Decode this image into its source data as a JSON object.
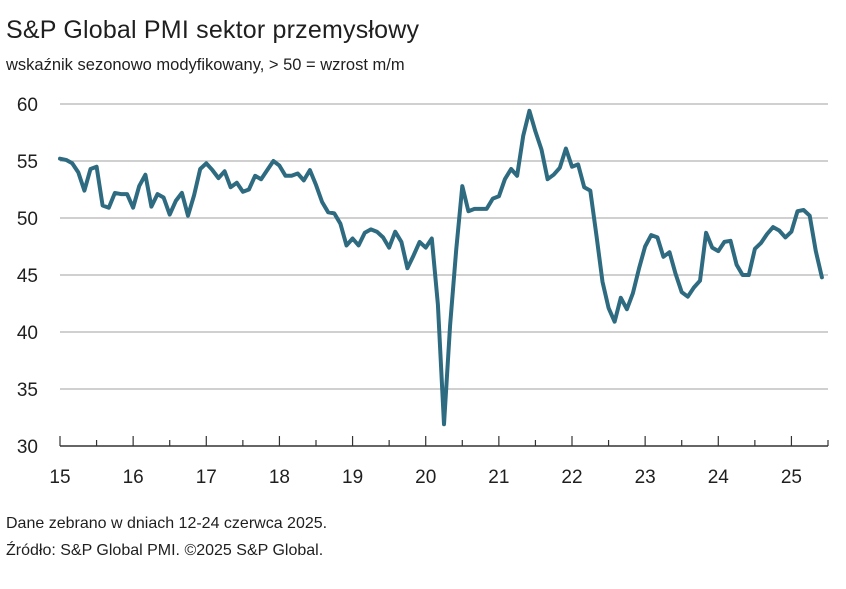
{
  "title": "S&P Global PMI sektor przemysłowy",
  "subtitle": "wskaźnik sezonowo modyfikowany, > 50 = wzrost m/m",
  "footnotes": {
    "collected": "Dane zebrano w dniach 12-24 czerwca 2025.",
    "source": "Źródło: S&P Global PMI. ©2025 S&P Global."
  },
  "chart_data": {
    "type": "line",
    "title": "S&P Global PMI sektor przemysłowy",
    "subtitle": "wskaźnik sezonowo modyfikowany, > 50 = wzrost m/m",
    "xlabel": "",
    "ylabel": "",
    "ylim": [
      30,
      60
    ],
    "xlim": [
      2015.0,
      2025.5
    ],
    "grid": "horizontal",
    "legend": "none",
    "line_color": "#2e6b80",
    "y_ticks": [
      "60",
      "55",
      "50",
      "45",
      "40",
      "35",
      "30"
    ],
    "x_ticks": [
      "15",
      "16",
      "17",
      "18",
      "19",
      "20",
      "21",
      "22",
      "23",
      "24",
      "25"
    ],
    "series": [
      {
        "name": "",
        "x": [
          2015.0,
          2015.083,
          2015.167,
          2015.25,
          2015.333,
          2015.417,
          2015.5,
          2015.583,
          2015.667,
          2015.75,
          2015.833,
          2015.917,
          2016.0,
          2016.083,
          2016.167,
          2016.25,
          2016.333,
          2016.417,
          2016.5,
          2016.583,
          2016.667,
          2016.75,
          2016.833,
          2016.917,
          2017.0,
          2017.083,
          2017.167,
          2017.25,
          2017.333,
          2017.417,
          2017.5,
          2017.583,
          2017.667,
          2017.75,
          2017.833,
          2017.917,
          2018.0,
          2018.083,
          2018.167,
          2018.25,
          2018.333,
          2018.417,
          2018.5,
          2018.583,
          2018.667,
          2018.75,
          2018.833,
          2018.917,
          2019.0,
          2019.083,
          2019.167,
          2019.25,
          2019.333,
          2019.417,
          2019.5,
          2019.583,
          2019.667,
          2019.75,
          2019.833,
          2019.917,
          2020.0,
          2020.083,
          2020.167,
          2020.25,
          2020.333,
          2020.417,
          2020.5,
          2020.583,
          2020.667,
          2020.75,
          2020.833,
          2020.917,
          2021.0,
          2021.083,
          2021.167,
          2021.25,
          2021.333,
          2021.417,
          2021.5,
          2021.583,
          2021.667,
          2021.75,
          2021.833,
          2021.917,
          2022.0,
          2022.083,
          2022.167,
          2022.25,
          2022.333,
          2022.417,
          2022.5,
          2022.583,
          2022.667,
          2022.75,
          2022.833,
          2022.917,
          2023.0,
          2023.083,
          2023.167,
          2023.25,
          2023.333,
          2023.417,
          2023.5,
          2023.583,
          2023.667,
          2023.75,
          2023.833,
          2023.917,
          2024.0,
          2024.083,
          2024.167,
          2024.25,
          2024.333,
          2024.417,
          2024.5,
          2024.583,
          2024.667,
          2024.75,
          2024.833,
          2024.917,
          2025.0,
          2025.083,
          2025.167,
          2025.25,
          2025.333,
          2025.417
        ],
        "y": [
          55.2,
          55.1,
          54.8,
          54.0,
          52.4,
          54.3,
          54.5,
          51.1,
          50.9,
          52.2,
          52.1,
          52.1,
          50.9,
          52.8,
          53.8,
          51.0,
          52.1,
          51.8,
          50.3,
          51.5,
          52.2,
          50.2,
          52.0,
          54.3,
          54.8,
          54.2,
          53.5,
          54.1,
          52.7,
          53.1,
          52.3,
          52.5,
          53.7,
          53.4,
          54.2,
          55.0,
          54.6,
          53.7,
          53.7,
          53.9,
          53.3,
          54.2,
          52.9,
          51.4,
          50.5,
          50.4,
          49.5,
          47.6,
          48.2,
          47.6,
          48.7,
          49.0,
          48.8,
          48.3,
          47.4,
          48.8,
          47.9,
          45.6,
          46.7,
          47.9,
          47.4,
          48.2,
          42.4,
          31.9,
          40.6,
          47.2,
          52.8,
          50.6,
          50.8,
          50.8,
          50.8,
          51.7,
          51.9,
          53.4,
          54.3,
          53.7,
          57.2,
          59.4,
          57.6,
          56.0,
          53.4,
          53.8,
          54.4,
          56.1,
          54.5,
          54.7,
          52.7,
          52.4,
          48.5,
          44.4,
          42.1,
          40.9,
          43.0,
          42.0,
          43.4,
          45.6,
          47.5,
          48.5,
          48.3,
          46.6,
          47.0,
          45.1,
          43.5,
          43.1,
          43.9,
          44.5,
          48.7,
          47.4,
          47.1,
          47.9,
          48.0,
          45.9,
          45.0,
          45.0,
          47.3,
          47.8,
          48.6,
          49.2,
          48.9,
          48.3,
          48.8,
          50.6,
          50.7,
          50.2,
          47.1,
          44.8
        ]
      }
    ]
  }
}
